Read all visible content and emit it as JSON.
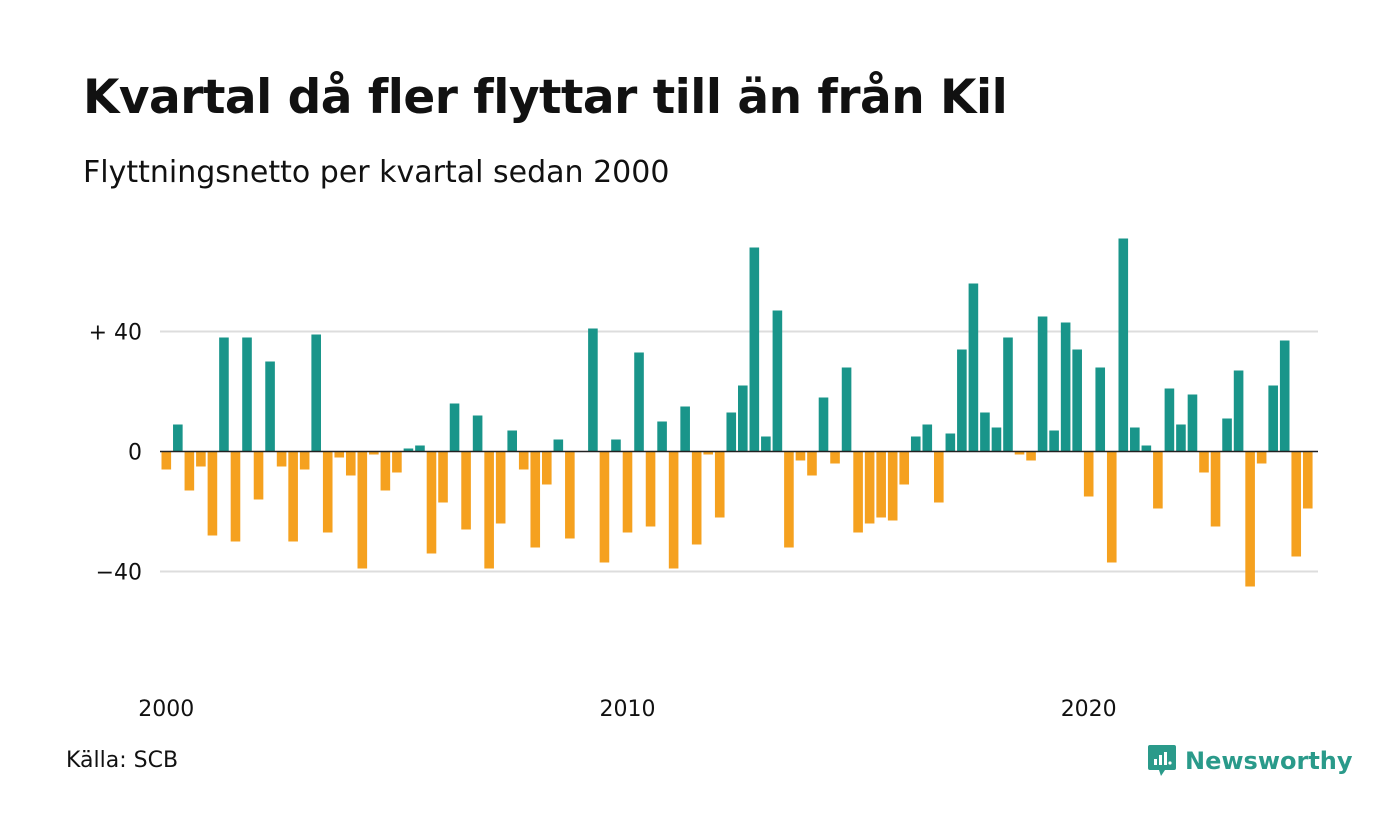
{
  "title": "Kvartal då fler flyttar till än från Kil",
  "subtitle": "Flyttningsnetto per kvartal sedan 2000",
  "source": "Källa: SCB",
  "brand": "Newsworthy",
  "colors": {
    "positive": "#19958a",
    "negative": "#f5a11f",
    "grid": "#dddddd",
    "zero_line": "#222222",
    "brand": "#2a9a8a"
  },
  "chart_data": {
    "type": "bar",
    "x_start": "2000 Q1",
    "x_ticks": [
      "2000",
      "2010",
      "2020"
    ],
    "y_ticks": [
      "+ 40",
      "0",
      "−40"
    ],
    "y_tick_values": [
      40,
      0,
      -40
    ],
    "ylim": [
      -62,
      72
    ],
    "grid": true,
    "values": [
      -6,
      9,
      -13,
      -5,
      -28,
      38,
      -30,
      38,
      -16,
      30,
      -5,
      -30,
      -6,
      39,
      -27,
      -2,
      -8,
      -39,
      -1,
      -13,
      -7,
      1,
      2,
      -34,
      -17,
      16,
      -26,
      12,
      -39,
      -24,
      7,
      -6,
      -32,
      -11,
      4,
      -29,
      0,
      41,
      -37,
      4,
      -27,
      33,
      -25,
      10,
      -39,
      15,
      -31,
      -1,
      -22,
      13,
      22,
      68,
      5,
      47,
      -32,
      -3,
      -8,
      18,
      -4,
      28,
      -27,
      -24,
      -22,
      -23,
      -11,
      5,
      9,
      -17,
      6,
      34,
      56,
      13,
      8,
      38,
      -1,
      -3,
      45,
      7,
      43,
      34,
      -15,
      28,
      -37,
      71,
      8,
      2,
      -19,
      21,
      9,
      19,
      -7,
      -25,
      11,
      27,
      -45,
      -4,
      22,
      37,
      -35,
      -19
    ]
  }
}
